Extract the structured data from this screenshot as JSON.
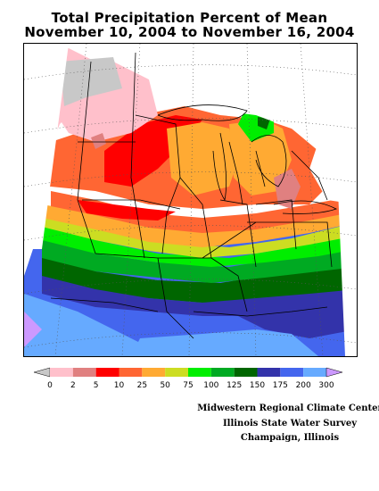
{
  "title": {
    "line1": "Total Precipitation Percent of Mean",
    "line2": "November 10, 2004 to November 16, 2004"
  },
  "legend": {
    "ticks": [
      "0",
      "2",
      "5",
      "10",
      "25",
      "50",
      "75",
      "100",
      "125",
      "150",
      "175",
      "200",
      "300"
    ],
    "colors": [
      "#c8c8c8",
      "#ffc0cb",
      "#e08080",
      "#ff0000",
      "#ff6633",
      "#ffaa33",
      "#ccdd22",
      "#00ee00",
      "#00aa22",
      "#006600",
      "#3333aa",
      "#4466ee",
      "#66aaff",
      "#cc99ff"
    ]
  },
  "credits": {
    "line1": "Midwestern Regional Climate Center",
    "line2": "Illinois State Water Survey",
    "line3": "Champaign, Illinois"
  }
}
